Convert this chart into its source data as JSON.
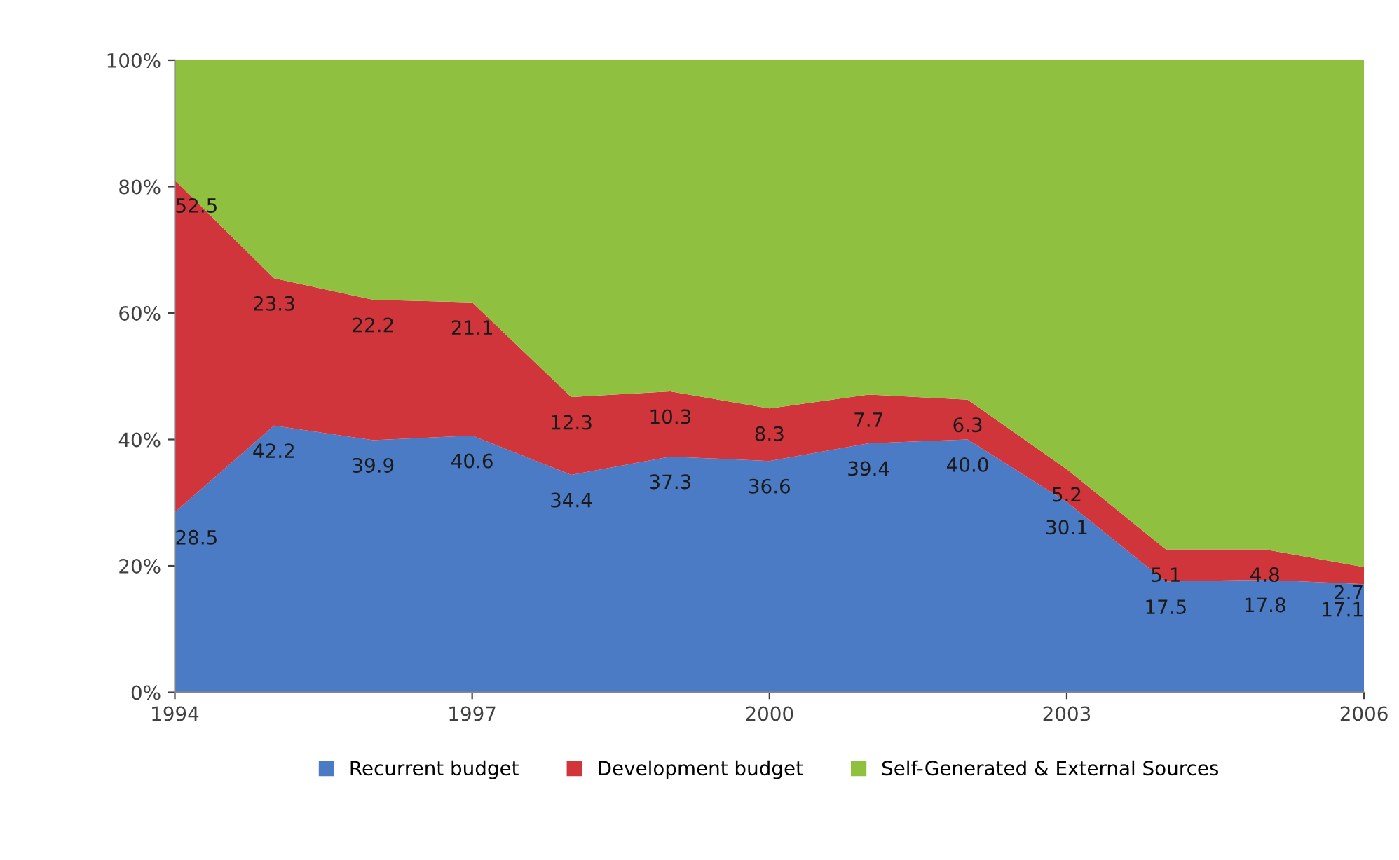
{
  "chart_data": {
    "type": "area",
    "stacked": true,
    "x": [
      1994,
      1995,
      1996,
      1997,
      1998,
      1999,
      2000,
      2001,
      2002,
      2003,
      2004,
      2005,
      2006
    ],
    "series": [
      {
        "name": "Recurrent budget",
        "color": "#4a7bc4",
        "values": [
          28.5,
          42.2,
          39.9,
          40.6,
          34.4,
          37.3,
          36.6,
          39.4,
          40.0,
          30.1,
          17.5,
          17.8,
          17.1
        ],
        "value_labels": [
          "28.5",
          "42.2",
          "39.9",
          "40.6",
          "34.4",
          "37.3",
          "36.6",
          "39.4",
          "40.0",
          "30.1",
          "17.5",
          "17.8",
          "17.1"
        ]
      },
      {
        "name": "Development budget",
        "color": "#d1353c",
        "values": [
          52.5,
          23.3,
          22.2,
          21.1,
          12.3,
          10.3,
          8.3,
          7.7,
          6.3,
          5.2,
          5.1,
          4.8,
          2.7
        ],
        "value_labels": [
          "52.5",
          "23.3",
          "22.2",
          "21.1",
          "12.3",
          "10.3",
          "8.3",
          "7.7",
          "6.3",
          "5.2",
          "5.1",
          "4.8",
          "2.7"
        ]
      },
      {
        "name": "Self-Generated & External Sources",
        "color": "#8fc03f",
        "values": [
          19.0,
          34.5,
          37.9,
          38.3,
          53.3,
          52.4,
          55.1,
          52.9,
          53.7,
          64.7,
          77.4,
          77.4,
          80.2
        ]
      }
    ],
    "xlim": [
      1994,
      2006
    ],
    "xticks": [
      1994,
      1997,
      2000,
      2003,
      2006
    ],
    "ylim": [
      0,
      100
    ],
    "yticks": [
      {
        "value": 0,
        "label": "0%"
      },
      {
        "value": 20,
        "label": "20%"
      },
      {
        "value": 40,
        "label": "40%"
      },
      {
        "value": 60,
        "label": "60%"
      },
      {
        "value": 80,
        "label": "80%"
      },
      {
        "value": 100,
        "label": "100%"
      }
    ],
    "grid": false,
    "legend": "bottom"
  }
}
